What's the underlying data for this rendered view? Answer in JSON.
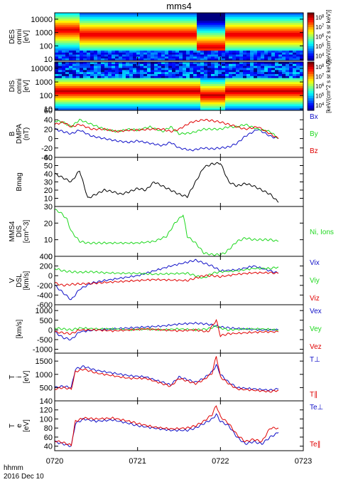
{
  "title": "mms4",
  "time_axis": {
    "ticks": [
      "0720",
      "0721",
      "0722",
      "0723"
    ],
    "unit_label": "hhmm",
    "date_label": "2016 Dec 10",
    "range_minutes": [
      0,
      3
    ]
  },
  "colors": {
    "red": "#e00000",
    "green": "#1fd81f",
    "blue": "#1010c8",
    "black": "#000000"
  },
  "chart_data": [
    {
      "type": "heatmap",
      "name": "electron-energy-spectrogram",
      "ylabel": [
        "DES",
        "omni",
        "[eV]"
      ],
      "ylabel_visible_partial": true,
      "yscale": "log",
      "ylim": [
        8,
        30000
      ],
      "yticks": [
        "10",
        "100",
        "1000",
        "10000"
      ],
      "colorbar": {
        "label": "[keV/(cm^2 s sr keV)]",
        "ticks": [
          "10^4",
          "10^5",
          "10^6",
          "10^7",
          "10^8"
        ]
      },
      "description_values": {
        "peak_energy_eV_early": 1000,
        "peak_energy_eV_late": 800
      }
    },
    {
      "type": "heatmap",
      "name": "ion-energy-spectrogram",
      "ylabel": [
        "DIS",
        "omni",
        "[eV]"
      ],
      "yscale": "log",
      "ylim": [
        8,
        30000
      ],
      "yticks": [
        "10",
        "100",
        "1000",
        "10000"
      ],
      "colorbar": {
        "label": "[keV/(cm^2 s sr keV)]",
        "ticks": [
          "10^4",
          "10^5",
          "10^6",
          "10^7",
          "10^8"
        ]
      },
      "description_values": {
        "peak_energy_eV": 200
      }
    },
    {
      "type": "line",
      "name": "magnetic-field",
      "ylabel": [
        "B",
        "DMPA",
        "(nT)"
      ],
      "ylim": [
        -40,
        60
      ],
      "yticks": [
        "60",
        "40",
        "20",
        "0",
        "-20",
        "-40"
      ],
      "x": [
        0,
        0.1,
        0.2,
        0.3,
        0.45,
        0.6,
        0.75,
        0.9,
        1.0,
        1.15,
        1.3,
        1.4,
        1.5,
        1.65,
        1.8,
        1.9,
        2.0,
        2.1,
        2.2,
        2.3,
        2.45,
        2.6,
        2.7
      ],
      "series": [
        {
          "name": "Bx",
          "color": "blue",
          "values": [
            20,
            15,
            10,
            18,
            5,
            0,
            -5,
            -8,
            -5,
            -10,
            -15,
            -8,
            -20,
            -25,
            -20,
            -22,
            -20,
            -18,
            -10,
            5,
            20,
            5,
            0
          ]
        },
        {
          "name": "By",
          "color": "green",
          "values": [
            38,
            35,
            25,
            40,
            30,
            20,
            15,
            20,
            18,
            25,
            15,
            25,
            10,
            12,
            20,
            20,
            20,
            25,
            25,
            30,
            20,
            15,
            0
          ]
        },
        {
          "name": "Bz",
          "color": "red",
          "values": [
            30,
            35,
            25,
            30,
            20,
            20,
            15,
            18,
            18,
            20,
            20,
            15,
            20,
            35,
            40,
            38,
            35,
            30,
            25,
            20,
            25,
            10,
            0
          ]
        }
      ],
      "legend": [
        "Bx",
        "By",
        "Bz"
      ]
    },
    {
      "type": "line",
      "name": "field-magnitude",
      "ylabel": [
        "Bmag"
      ],
      "ylim": [
        0,
        60
      ],
      "yticks": [
        "60",
        "50",
        "40",
        "30",
        "20",
        "10"
      ],
      "x": [
        0,
        0.1,
        0.2,
        0.3,
        0.4,
        0.5,
        0.6,
        0.7,
        0.8,
        0.9,
        1.0,
        1.1,
        1.2,
        1.3,
        1.4,
        1.5,
        1.6,
        1.7,
        1.8,
        1.9,
        2.0,
        2.1,
        2.2,
        2.3,
        2.4,
        2.5,
        2.6,
        2.7
      ],
      "series": [
        {
          "name": "Bmag",
          "color": "black",
          "values": [
            40,
            35,
            30,
            44,
            10,
            15,
            20,
            18,
            15,
            18,
            22,
            20,
            30,
            25,
            20,
            15,
            12,
            30,
            48,
            52,
            53,
            30,
            25,
            28,
            25,
            20,
            15,
            5
          ]
        }
      ]
    },
    {
      "type": "line",
      "name": "ion-density",
      "ylabel": [
        "MMS4",
        "DIS",
        "[cm^-3]"
      ],
      "ylim": [
        0,
        30
      ],
      "yticks": [
        "30",
        "20",
        "10",
        "0"
      ],
      "x": [
        0,
        0.05,
        0.1,
        0.15,
        0.2,
        0.3,
        0.4,
        0.5,
        0.6,
        0.8,
        1.0,
        1.2,
        1.35,
        1.45,
        1.55,
        1.6,
        1.7,
        1.8,
        1.9,
        2.0,
        2.05,
        2.1,
        2.2,
        2.3,
        2.4,
        2.5,
        2.6,
        2.7
      ],
      "series": [
        {
          "name": "Ni, Ions",
          "color": "green",
          "values": [
            28,
            27,
            25,
            22,
            15,
            9,
            8,
            8,
            8,
            8,
            8,
            9,
            12,
            20,
            25,
            12,
            8,
            2,
            1,
            1,
            2,
            4,
            9,
            11,
            10,
            10,
            10,
            9
          ]
        }
      ],
      "legend": [
        "Ni, Ions"
      ]
    },
    {
      "type": "line",
      "name": "ion-velocity",
      "ylabel": [
        "V",
        "DSL",
        "[km/s]"
      ],
      "ylim": [
        -600,
        400
      ],
      "yticks": [
        "400",
        "200",
        "0",
        "-200",
        "-400",
        "-600"
      ],
      "x": [
        0,
        0.1,
        0.2,
        0.3,
        0.45,
        0.6,
        0.8,
        1.0,
        1.2,
        1.4,
        1.6,
        1.7,
        1.8,
        1.9,
        2.0,
        2.2,
        2.4,
        2.6,
        2.7
      ],
      "series": [
        {
          "name": "Vix",
          "color": "blue",
          "values": [
            -200,
            -350,
            -500,
            -280,
            -150,
            -100,
            -50,
            0,
            100,
            200,
            280,
            320,
            260,
            200,
            100,
            120,
            200,
            100,
            50
          ]
        },
        {
          "name": "Viy",
          "color": "green",
          "values": [
            150,
            100,
            80,
            70,
            80,
            60,
            50,
            50,
            30,
            40,
            50,
            0,
            -50,
            50,
            80,
            100,
            150,
            150,
            180
          ]
        },
        {
          "name": "Viz",
          "color": "red",
          "values": [
            -150,
            -200,
            -180,
            -170,
            -160,
            -140,
            -120,
            -100,
            -80,
            -90,
            -100,
            -50,
            0,
            0,
            -20,
            30,
            60,
            60,
            50
          ]
        }
      ],
      "legend": [
        "Vix",
        "Viy",
        "Viz"
      ]
    },
    {
      "type": "line",
      "name": "electron-velocity",
      "ylabel": [
        "[km/s]"
      ],
      "ylim": [
        -1200,
        1300
      ],
      "yticks": [
        "1000",
        "500",
        "0",
        "-500",
        "-1000"
      ],
      "x": [
        0,
        0.1,
        0.2,
        0.3,
        0.5,
        0.7,
        0.9,
        1.1,
        1.3,
        1.5,
        1.7,
        1.85,
        1.95,
        2.0,
        2.1,
        2.3,
        2.5,
        2.7
      ],
      "series": [
        {
          "name": "Vex",
          "color": "blue",
          "values": [
            -100,
            -400,
            -500,
            -100,
            0,
            50,
            100,
            150,
            200,
            300,
            350,
            300,
            200,
            150,
            100,
            50,
            0,
            0
          ]
        },
        {
          "name": "Vey",
          "color": "green",
          "values": [
            100,
            50,
            0,
            100,
            50,
            50,
            0,
            50,
            0,
            50,
            0,
            50,
            200,
            100,
            0,
            50,
            50,
            0
          ]
        },
        {
          "name": "Vez",
          "color": "red",
          "values": [
            -100,
            -150,
            -200,
            0,
            0,
            -50,
            0,
            50,
            0,
            -50,
            0,
            -100,
            500,
            -300,
            -200,
            -150,
            -100,
            -100
          ]
        }
      ],
      "legend": [
        "Vex",
        "Vey",
        "Vez"
      ]
    },
    {
      "type": "line",
      "name": "ion-temperature",
      "ylabel": [
        "T",
        "i",
        "[eV]"
      ],
      "ylim": [
        0,
        1800
      ],
      "yticks": [
        "1500",
        "1000",
        "500"
      ],
      "x": [
        0,
        0.1,
        0.2,
        0.25,
        0.35,
        0.5,
        0.7,
        0.9,
        1.1,
        1.3,
        1.4,
        1.5,
        1.6,
        1.7,
        1.8,
        1.9,
        1.95,
        2.0,
        2.1,
        2.2,
        2.4,
        2.6,
        2.7
      ],
      "series": [
        {
          "name": "Ti_perp",
          "color": "blue",
          "values": [
            500,
            550,
            500,
            1200,
            1300,
            1150,
            1050,
            950,
            900,
            700,
            600,
            900,
            800,
            700,
            850,
            1100,
            1350,
            1000,
            700,
            500,
            450,
            400,
            450
          ]
        },
        {
          "name": "Ti_par",
          "color": "red",
          "values": [
            450,
            500,
            450,
            1100,
            1200,
            1050,
            950,
            850,
            850,
            650,
            550,
            850,
            750,
            650,
            800,
            1050,
            1700,
            900,
            650,
            450,
            400,
            350,
            400
          ]
        }
      ],
      "legend": [
        "T⊥",
        "T∥"
      ]
    },
    {
      "type": "line",
      "name": "electron-temperature",
      "ylabel": [
        "T",
        "e",
        "[eV]"
      ],
      "ylim": [
        30,
        140
      ],
      "yticks": [
        "140",
        "120",
        "100",
        "80",
        "60",
        "40"
      ],
      "x": [
        0,
        0.1,
        0.2,
        0.25,
        0.35,
        0.5,
        0.7,
        0.9,
        1.0,
        1.2,
        1.4,
        1.6,
        1.7,
        1.8,
        1.9,
        1.95,
        2.0,
        2.1,
        2.2,
        2.3,
        2.4,
        2.5,
        2.6,
        2.7
      ],
      "series": [
        {
          "name": "Te_perp",
          "color": "blue",
          "values": [
            50,
            45,
            40,
            90,
            100,
            95,
            98,
            90,
            85,
            80,
            75,
            75,
            80,
            90,
            100,
            110,
            95,
            85,
            60,
            45,
            50,
            45,
            60,
            70
          ]
        },
        {
          "name": "Te_par",
          "color": "red",
          "values": [
            52,
            48,
            42,
            95,
            102,
            100,
            102,
            95,
            90,
            82,
            78,
            80,
            85,
            95,
            110,
            130,
            105,
            90,
            65,
            50,
            55,
            50,
            80,
            80
          ]
        }
      ],
      "legend": [
        "Te⊥",
        "Te∥"
      ]
    }
  ]
}
